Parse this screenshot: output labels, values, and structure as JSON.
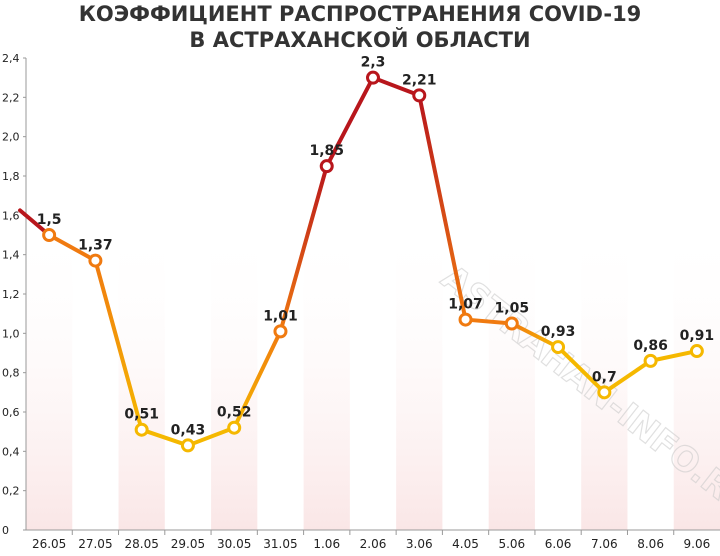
{
  "chart_data": {
    "type": "line",
    "title_line1": "КОЭФФИЦИЕНТ РАСПРОСТРАНЕНИЯ COVID-19",
    "title_line2": "В АСТРАХАНСКОЙ ОБЛАСТИ",
    "categories": [
      "26.05",
      "27.05",
      "28.05",
      "29.05",
      "30.05",
      "31.05",
      "1.06",
      "2.06",
      "3.06",
      "4.05",
      "5.06",
      "6.06",
      "7.06",
      "8.06",
      "9.06"
    ],
    "values": [
      1.5,
      1.37,
      0.51,
      0.43,
      0.52,
      1.01,
      1.85,
      2.3,
      2.21,
      1.07,
      1.05,
      0.93,
      0.7,
      0.86,
      0.91
    ],
    "value_labels": [
      "1,5",
      "1,37",
      "0,51",
      "0,43",
      "0,52",
      "1,01",
      "1,85",
      "2,3",
      "2,21",
      "1,07",
      "1,05",
      "0,93",
      "0,7",
      "0,86",
      "0,91"
    ],
    "lead_in_value": 1.61,
    "ylim": [
      0,
      2.4
    ],
    "yticks": [
      "0",
      "0,2",
      "0,4",
      "0,6",
      "0,8",
      "1,0",
      "1,2",
      "1,4",
      "1,6",
      "1,8",
      "2,0",
      "2,2",
      "2,4"
    ],
    "grid": false,
    "legend": "none",
    "watermark": "ASTRAHAN-INFO.RU",
    "colors": {
      "low": "#f5b800",
      "mid": "#f07a10",
      "high": "#b8161c",
      "band": "#fae6e6",
      "axis": "#999999"
    }
  }
}
